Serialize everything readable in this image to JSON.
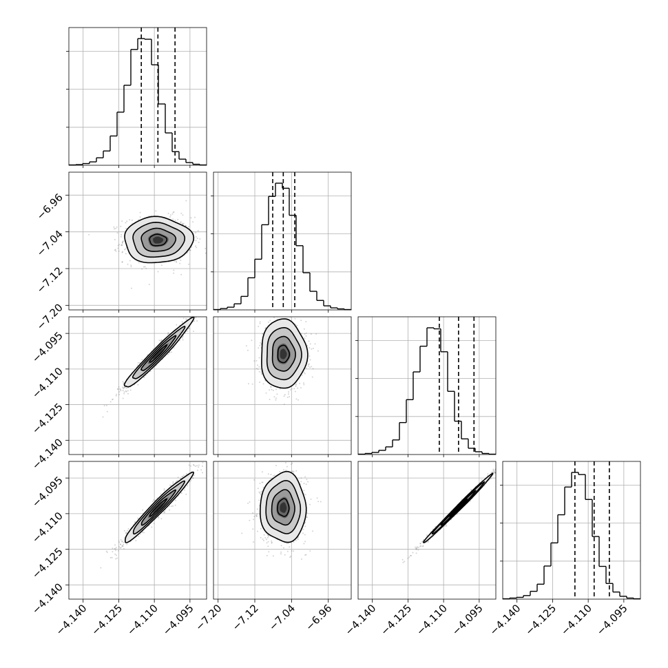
{
  "chart_data": {
    "type": "corner",
    "title": "",
    "colors": {
      "line": "#000000",
      "grid": "#b0b0b0",
      "scatter": "#808080",
      "background": "#ffffff"
    },
    "grid": true,
    "quantiles": [
      0.16,
      0.5,
      0.84
    ],
    "params": [
      {
        "range": [
          -4.146,
          -4.088
        ],
        "ticks": [
          -4.14,
          -4.125,
          -4.11,
          -4.095
        ],
        "tick_labels": [
          "−4.140",
          "−4.125",
          "−4.110",
          "−4.095"
        ],
        "quantile_values": [
          -4.1155,
          -4.1085,
          -4.1013
        ],
        "mean": -4.1085,
        "sd": 0.0072
      },
      {
        "range": [
          -7.21,
          -6.91
        ],
        "ticks": [
          -7.2,
          -7.12,
          -7.04,
          -6.96
        ],
        "tick_labels": [
          "−7.20",
          "−7.12",
          "−7.04",
          "−6.96"
        ],
        "quantile_values": [
          -7.081,
          -7.058,
          -7.033
        ],
        "mean": -7.058,
        "sd": 0.025
      },
      {
        "range": [
          -4.146,
          -4.088
        ],
        "ticks": [
          -4.14,
          -4.125,
          -4.11,
          -4.095
        ],
        "tick_labels": [
          "−4.140",
          "−4.125",
          "−4.110",
          "−4.095"
        ],
        "quantile_values": [
          -4.1118,
          -4.1037,
          -4.0972
        ],
        "mean": -4.1037,
        "sd": 0.0073
      },
      {
        "range": [
          -4.146,
          -4.088
        ],
        "ticks": [
          -4.14,
          -4.125,
          -4.11,
          -4.095
        ],
        "tick_labels": [
          "−4.140",
          "−4.125",
          "−4.110",
          "−4.095"
        ],
        "quantile_values": [
          -4.1156,
          -4.1075,
          -4.1011
        ],
        "mean": -4.1075,
        "sd": 0.0073
      }
    ],
    "histograms": [
      {
        "param": 0,
        "bins": 20,
        "counts": [
          1,
          2,
          5,
          10,
          22,
          42,
          86,
          156,
          235,
          340,
          372,
          370,
          295,
          180,
          95,
          40,
          18,
          8,
          3,
          1
        ]
      },
      {
        "param": 1,
        "bins": 20,
        "counts": [
          1,
          4,
          8,
          18,
          40,
          95,
          150,
          252,
          336,
          375,
          360,
          280,
          190,
          110,
          55,
          28,
          12,
          6,
          3,
          1
        ]
      },
      {
        "param": 2,
        "bins": 20,
        "counts": [
          1,
          3,
          6,
          12,
          22,
          42,
          92,
          158,
          238,
          312,
          365,
          362,
          296,
          182,
          96,
          45,
          18,
          8,
          3,
          1
        ]
      },
      {
        "param": 3,
        "bins": 20,
        "counts": [
          1,
          3,
          5,
          10,
          22,
          42,
          93,
          158,
          237,
          315,
          356,
          350,
          280,
          176,
          92,
          44,
          20,
          8,
          3,
          1
        ]
      }
    ],
    "pairs": [
      {
        "x": 0,
        "y": 1,
        "correlation": 0.0
      },
      {
        "x": 0,
        "y": 2,
        "correlation": 0.97
      },
      {
        "x": 1,
        "y": 2,
        "correlation": 0.0
      },
      {
        "x": 0,
        "y": 3,
        "correlation": 0.97
      },
      {
        "x": 1,
        "y": 3,
        "correlation": 0.0
      },
      {
        "x": 2,
        "y": 3,
        "correlation": 0.995
      }
    ]
  }
}
